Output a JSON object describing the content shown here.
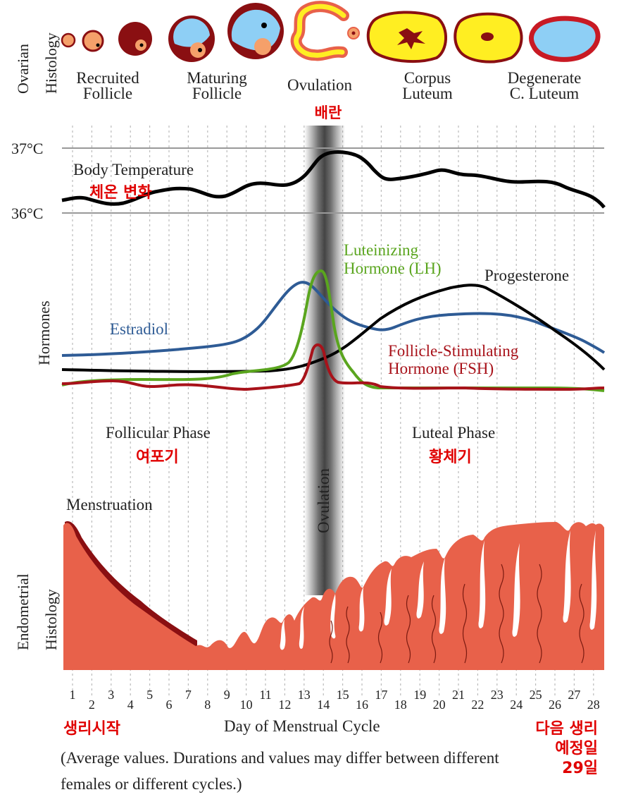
{
  "ovarian": {
    "axis_label_1": "Ovarian",
    "axis_label_2": "Histology",
    "stages": [
      {
        "line1": "Recruited",
        "line2": "Follicle"
      },
      {
        "line1": "Maturing",
        "line2": "Follicle"
      },
      {
        "line1": "Ovulation",
        "line2": ""
      },
      {
        "line1": "Corpus",
        "line2": "Luteum"
      },
      {
        "line1": "Degenerate",
        "line2": "C. Luteum"
      }
    ]
  },
  "ovulation_ko": "배란",
  "temperature": {
    "label": "Body Temperature",
    "label_ko": "체온 변화",
    "tick_high": "37°C",
    "tick_low": "36°C"
  },
  "hormones": {
    "axis_label": "Hormones",
    "lh_1": "Luteinizing",
    "lh_2": "Hormone (LH)",
    "progesterone": "Progesterone",
    "estradiol": "Estradiol",
    "fsh_1": "Follicle-Stimulating",
    "fsh_2": "Hormone (FSH)"
  },
  "phases": {
    "follicular": "Follicular Phase",
    "follicular_ko": "여포기",
    "luteal": "Luteal Phase",
    "luteal_ko": "황체기",
    "ovulation_vertical": "Ovulation"
  },
  "endometrium": {
    "menstruation": "Menstruation",
    "axis_label_1": "Endometrial",
    "axis_label_2": "Histology"
  },
  "xaxis": {
    "days": [
      "1",
      "2",
      "3",
      "4",
      "5",
      "6",
      "7",
      "8",
      "9",
      "10",
      "11",
      "12",
      "13",
      "14",
      "15",
      "16",
      "17",
      "18",
      "19",
      "20",
      "21",
      "22",
      "23",
      "24",
      "25",
      "26",
      "27",
      "28"
    ],
    "label": "Day of Menstrual Cycle",
    "start_ko": "생리시작",
    "next_ko_1": "다음 생리",
    "next_ko_2": "예정일",
    "next_ko_3": "29일"
  },
  "footnote": "(Average values. Durations and values may differ between different females or different cycles.)",
  "colors": {
    "estradiol": "#2e5b95",
    "lh": "#5aa51e",
    "progesterone": "#000000",
    "fsh": "#a8121a",
    "endometrium": "#e8614a",
    "endometrium_dark": "#8a0f12",
    "korean_text": "#e00000",
    "corpus_yellow": "#ffee22",
    "follicle_blue": "#8ecff5"
  }
}
